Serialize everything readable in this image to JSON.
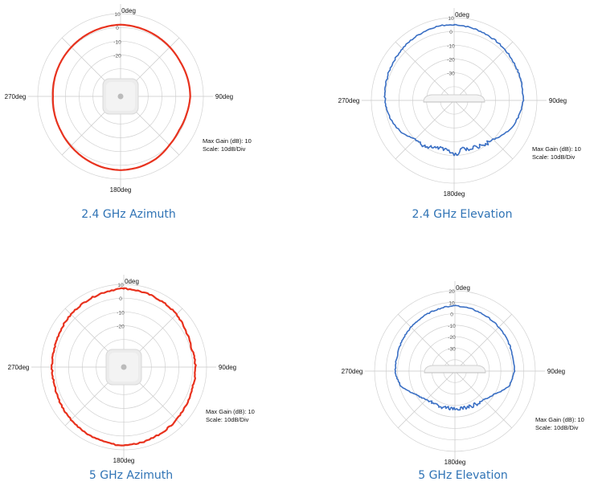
{
  "chart_data": [
    {
      "type": "polar",
      "title": "2.4 GHz Azimuth",
      "angle_labels": {
        "top": "0deg",
        "right": "90deg",
        "bottom": "180deg",
        "left": "270deg"
      },
      "radial_ticks": [
        "10",
        "0",
        "-10",
        "-20"
      ],
      "max_gain_label": "Max Gain (dB): 10",
      "scale_label": "Scale: 10dB/Div",
      "rlim": [
        -50,
        10
      ],
      "series_color": "#e8321e",
      "device": "square-ap-top-view",
      "gain_pattern": {
        "angles_deg": [
          0,
          15,
          30,
          45,
          60,
          75,
          90,
          105,
          120,
          135,
          150,
          165,
          180,
          195,
          210,
          225,
          240,
          255,
          270,
          285,
          300,
          315,
          330,
          345
        ],
        "gain_db": [
          2,
          1.5,
          1,
          0.5,
          0,
          0.3,
          0.5,
          -0.5,
          -1,
          0,
          2,
          3,
          3.5,
          3,
          2,
          1,
          0,
          -0.5,
          -1,
          -0.5,
          0,
          0.5,
          1,
          1.5
        ]
      }
    },
    {
      "type": "polar",
      "title": "2.4 GHz Elevation",
      "angle_labels": {
        "top": "0deg",
        "right": "90deg",
        "bottom": "180deg",
        "left": "270deg"
      },
      "radial_ticks": [
        "10",
        "0",
        "-10",
        "-20",
        "-30"
      ],
      "max_gain_label": "Max Gain (dB): 10",
      "scale_label": "Scale: 10dB/Div",
      "rlim": [
        -50,
        10
      ],
      "series_color": "#3a6fc4",
      "device": "flat-ap-side-view",
      "gain_pattern": {
        "angles_deg": [
          0,
          15,
          30,
          45,
          60,
          75,
          90,
          105,
          120,
          135,
          150,
          160,
          170,
          180,
          190,
          200,
          210,
          225,
          240,
          255,
          270,
          285,
          300,
          315,
          330,
          345
        ],
        "gain_db": [
          5,
          4,
          3,
          2,
          1,
          0.5,
          0,
          -2,
          -5,
          -10,
          -12,
          -13,
          -14,
          -10,
          -14,
          -13,
          -11,
          -10,
          -5,
          -2,
          0,
          1,
          2,
          3,
          4,
          5
        ]
      }
    },
    {
      "type": "polar",
      "title": "5 GHz Azimuth",
      "angle_labels": {
        "top": "0deg",
        "right": "90deg",
        "bottom": "180deg",
        "left": "270deg"
      },
      "radial_ticks": [
        "10",
        "0",
        "-10",
        "-20"
      ],
      "max_gain_label": "Max Gain (dB): 10",
      "scale_label": "Scale: 10dB/Div",
      "rlim": [
        -50,
        10
      ],
      "series_color": "#e8321e",
      "device": "square-ap-top-view",
      "gain_pattern": {
        "angles_deg": [
          0,
          15,
          30,
          45,
          60,
          75,
          90,
          105,
          120,
          135,
          150,
          165,
          180,
          195,
          210,
          225,
          240,
          255,
          270,
          285,
          300,
          315,
          330,
          345
        ],
        "gain_db": [
          7,
          6,
          5,
          4,
          2,
          1,
          2,
          2,
          3,
          4,
          5,
          6,
          7,
          6,
          5,
          4,
          3,
          2,
          2,
          2,
          3,
          4,
          5,
          6
        ]
      }
    },
    {
      "type": "polar",
      "title": "5 GHz Elevation",
      "angle_labels": {
        "top": "0deg",
        "right": "90deg",
        "bottom": "180deg",
        "left": "270deg"
      },
      "radial_ticks": [
        "20",
        "10",
        "0",
        "-10",
        "-20",
        "-30"
      ],
      "max_gain_label": "Max Gain (dB): 10",
      "scale_label": "Scale: 10dB/Div",
      "rlim": [
        -50,
        20
      ],
      "series_color": "#3a6fc4",
      "device": "flat-ap-side-view",
      "gain_pattern": {
        "angles_deg": [
          0,
          15,
          30,
          45,
          60,
          75,
          90,
          105,
          120,
          135,
          150,
          165,
          180,
          195,
          210,
          225,
          240,
          255,
          270,
          285,
          300,
          315,
          330,
          345
        ],
        "gain_db": [
          7,
          6,
          5,
          4,
          3,
          2,
          2,
          -1,
          -10,
          -15,
          -16,
          -17,
          -17,
          -17,
          -16,
          -15,
          -10,
          -1,
          2,
          2,
          3,
          4,
          5,
          6
        ]
      }
    }
  ]
}
